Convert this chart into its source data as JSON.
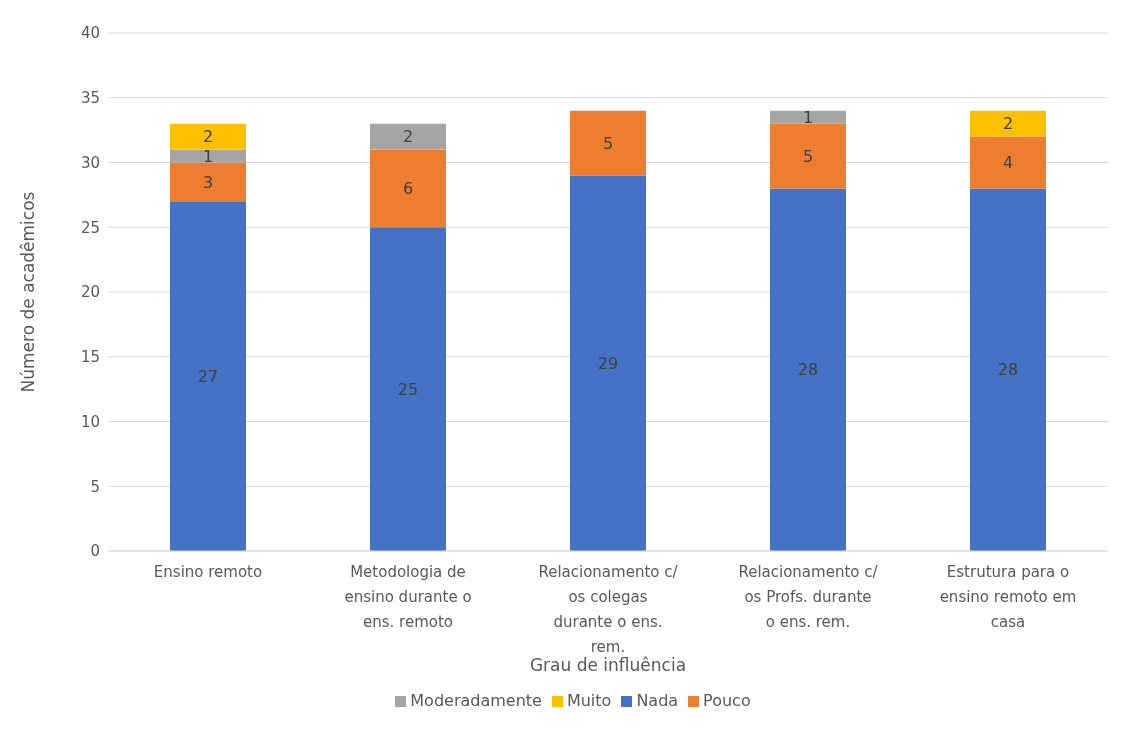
{
  "chart_data": {
    "type": "bar",
    "stacked": true,
    "xlabel": "Grau de influência",
    "ylabel": "Número de acadêmicos",
    "categories": [
      "Ensino remoto",
      "Metodologia de ensino durante o ens. remoto",
      "Relacionamento c/ os colegas durante o ens. rem.",
      "Relacionamento c/ os Profs. durante o ens. rem.",
      "Estrutura para o ensino remoto em casa"
    ],
    "series": [
      {
        "name": "Nada",
        "color": "#4472c4",
        "values": [
          27,
          25,
          29,
          28,
          28
        ]
      },
      {
        "name": "Pouco",
        "color": "#ed7d31",
        "values": [
          3,
          6,
          5,
          5,
          4
        ]
      },
      {
        "name": "Moderadamente",
        "color": "#a5a5a5",
        "values": [
          1,
          2,
          null,
          1,
          null
        ]
      },
      {
        "name": "Muito",
        "color": "#ffc000",
        "values": [
          2,
          null,
          null,
          null,
          2
        ]
      }
    ],
    "ylim": [
      0,
      40
    ],
    "yticks": [
      0,
      5,
      10,
      15,
      20,
      25,
      30,
      35,
      40
    ],
    "grid": "y",
    "legend": "bottom",
    "data_labels": true
  }
}
